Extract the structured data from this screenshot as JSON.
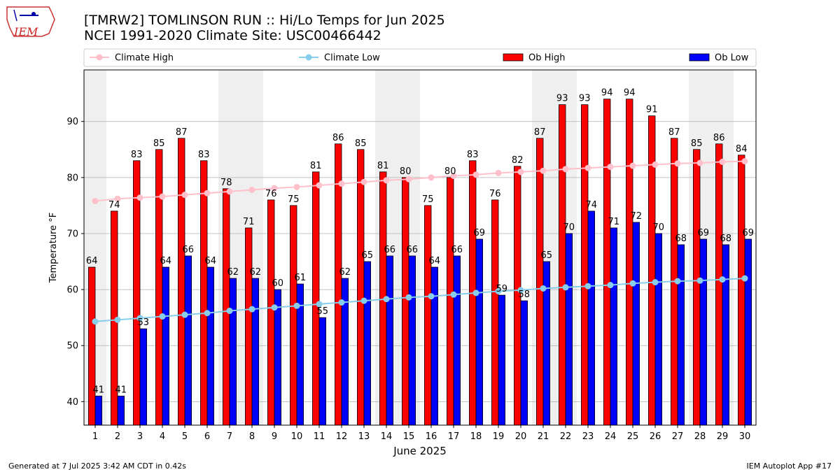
{
  "chart_data": {
    "type": "bar",
    "title": "[TMRW2] TOMLINSON RUN :: Hi/Lo Temps for Jun 2025",
    "subtitle": "NCEI 1991-2020 Climate Site: USC00466442",
    "xlabel": "June 2025",
    "ylabel": "Temperature °F",
    "ylim": [
      35.8,
      99.2
    ],
    "yticks": [
      40,
      50,
      60,
      70,
      80,
      90
    ],
    "grid": true,
    "legend_placement": "top",
    "categories": [
      "1",
      "2",
      "3",
      "4",
      "5",
      "6",
      "7",
      "8",
      "9",
      "10",
      "11",
      "12",
      "13",
      "14",
      "15",
      "16",
      "17",
      "18",
      "19",
      "20",
      "21",
      "22",
      "23",
      "24",
      "25",
      "26",
      "27",
      "28",
      "29",
      "30"
    ],
    "weekend_days": [
      1,
      7,
      8,
      14,
      15,
      21,
      22,
      28,
      29
    ],
    "series": [
      {
        "name": "Climate High",
        "kind": "line",
        "color": "#ffc0cb",
        "values": [
          75.8,
          76.2,
          76.4,
          76.6,
          76.9,
          77.2,
          77.5,
          77.8,
          78.1,
          78.3,
          78.6,
          78.9,
          79.2,
          79.5,
          79.7,
          80.0,
          80.3,
          80.5,
          80.8,
          81.0,
          81.2,
          81.5,
          81.7,
          81.9,
          82.1,
          82.3,
          82.5,
          82.6,
          82.8,
          82.9
        ]
      },
      {
        "name": "Climate Low",
        "kind": "line",
        "color": "#87ceeb",
        "values": [
          54.3,
          54.6,
          54.9,
          55.2,
          55.5,
          55.8,
          56.2,
          56.5,
          56.8,
          57.1,
          57.4,
          57.7,
          58.0,
          58.3,
          58.6,
          58.8,
          59.1,
          59.4,
          59.7,
          59.9,
          60.2,
          60.4,
          60.6,
          60.8,
          61.1,
          61.3,
          61.5,
          61.6,
          61.8,
          62.0
        ]
      },
      {
        "name": "Ob High",
        "kind": "bar",
        "color": "#ff0000",
        "values": [
          64,
          74,
          83,
          85,
          87,
          83,
          78,
          71,
          76,
          75,
          81,
          86,
          85,
          81,
          80,
          75,
          80,
          83,
          76,
          82,
          87,
          93,
          93,
          94,
          94,
          91,
          87,
          85,
          86,
          84
        ]
      },
      {
        "name": "Ob Low",
        "kind": "bar",
        "color": "#0000ff",
        "values": [
          41,
          41,
          53,
          64,
          66,
          64,
          62,
          62,
          60,
          61,
          55,
          62,
          65,
          66,
          66,
          64,
          66,
          69,
          59,
          58,
          65,
          70,
          74,
          71,
          72,
          70,
          68,
          69,
          68,
          69
        ]
      }
    ]
  },
  "logo": {
    "text": "IEM",
    "icon": "iowa-state-weather-icon"
  },
  "footer": {
    "left": "Generated at 7 Jul 2025 3:42 AM CDT in 0.42s",
    "right": "IEM Autoplot App #17"
  }
}
